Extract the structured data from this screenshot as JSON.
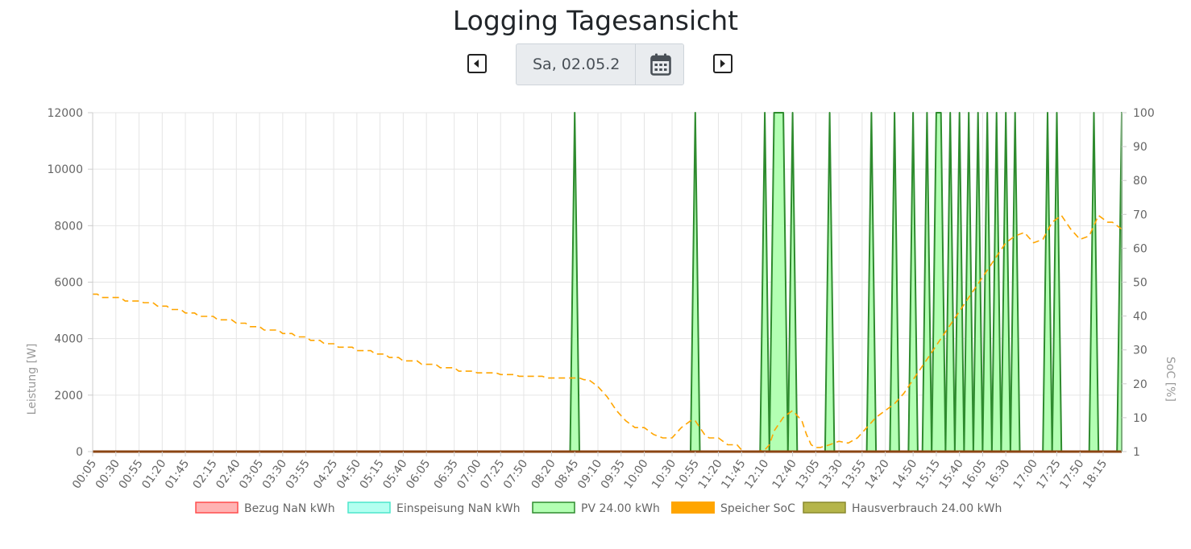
{
  "page": {
    "title": "Logging Tagesansicht"
  },
  "nav": {
    "date_value": "Sa, 02.05.2",
    "prev_icon": "caret-left-icon",
    "next_icon": "caret-right-icon",
    "calendar_icon": "calendar-icon"
  },
  "chart_data": {
    "type": "line",
    "y_left": {
      "label": "Leistung [W]",
      "min": 0,
      "max": 12000,
      "ticks": [
        0,
        2000,
        4000,
        6000,
        8000,
        10000,
        12000
      ]
    },
    "y_right": {
      "label": "SoC [%]",
      "min": 1,
      "max": 100,
      "tick_labels": [
        "1",
        "10",
        "20",
        "30",
        "40",
        "50",
        "60",
        "70",
        "80",
        "90",
        "100"
      ]
    },
    "x_tick_labels": [
      "00:05",
      "00:30",
      "00:55",
      "01:20",
      "01:45",
      "02:15",
      "02:40",
      "03:05",
      "03:30",
      "03:55",
      "04:25",
      "04:50",
      "05:15",
      "05:40",
      "06:05",
      "06:35",
      "07:00",
      "07:25",
      "07:50",
      "08:20",
      "08:45",
      "09:10",
      "09:35",
      "10:00",
      "10:30",
      "10:55",
      "11:20",
      "11:45",
      "12:10",
      "12:40",
      "13:05",
      "13:30",
      "13:55",
      "14:20",
      "14:50",
      "15:15",
      "15:40",
      "16:05",
      "16:30",
      "17:00",
      "17:25",
      "17:50",
      "18:15"
    ],
    "x_range": [
      "00:05",
      "18:35"
    ],
    "grid": true,
    "legend_position": "bottom",
    "legend": [
      {
        "label": "Bezug NaN kWh",
        "fill": "#ffb3b3",
        "stroke": "#ff4d4d"
      },
      {
        "label": "Einspeisung NaN kWh",
        "fill": "#b3fff0",
        "stroke": "#4de6cc"
      },
      {
        "label": "PV 24.00 kWh",
        "fill": "#b3ffb3",
        "stroke": "#2e8b2e"
      },
      {
        "label": "Speicher SoC",
        "fill": "#ffa500",
        "stroke": "#ffa500"
      },
      {
        "label": "Hausverbrauch 24.00 kWh",
        "fill": "#b5b54a",
        "stroke": "#8a8a2e"
      }
    ],
    "series": [
      {
        "name": "PV 24.00 kWh",
        "axis": "left",
        "style": "area",
        "color": "#2e8b2e",
        "fill": "#b3ffb3",
        "spikes": [
          {
            "start": "08:40",
            "peak": [
              "08:45"
            ],
            "end": "08:50"
          },
          {
            "start": "10:50",
            "peak": [
              "10:55"
            ],
            "end": "11:00"
          },
          {
            "start": "12:05",
            "peak": [
              "12:10"
            ],
            "end": "12:15"
          },
          {
            "start": "12:15",
            "peak": [
              "12:20",
              "12:30"
            ],
            "end": "12:35"
          },
          {
            "start": "12:35",
            "peak": [
              "12:40"
            ],
            "end": "12:45"
          },
          {
            "start": "13:15",
            "peak": [
              "13:20"
            ],
            "end": "13:25"
          },
          {
            "start": "14:00",
            "peak": [
              "14:05"
            ],
            "end": "14:10"
          },
          {
            "start": "14:25",
            "peak": [
              "14:30"
            ],
            "end": "14:35"
          },
          {
            "start": "14:45",
            "peak": [
              "14:50"
            ],
            "end": "14:55"
          },
          {
            "start": "15:00",
            "peak": [
              "15:05"
            ],
            "end": "15:10"
          },
          {
            "start": "15:10",
            "peak": [
              "15:15",
              "15:20"
            ],
            "end": "15:25"
          },
          {
            "start": "15:25",
            "peak": [
              "15:30"
            ],
            "end": "15:35"
          },
          {
            "start": "15:35",
            "peak": [
              "15:40"
            ],
            "end": "15:45"
          },
          {
            "start": "15:45",
            "peak": [
              "15:50"
            ],
            "end": "15:55"
          },
          {
            "start": "15:55",
            "peak": [
              "16:00"
            ],
            "end": "16:05"
          },
          {
            "start": "16:05",
            "peak": [
              "16:10"
            ],
            "end": "16:15"
          },
          {
            "start": "16:15",
            "peak": [
              "16:20"
            ],
            "end": "16:25"
          },
          {
            "start": "16:25",
            "peak": [
              "16:30"
            ],
            "end": "16:35"
          },
          {
            "start": "16:35",
            "peak": [
              "16:40"
            ],
            "end": "16:45"
          },
          {
            "start": "17:10",
            "peak": [
              "17:15"
            ],
            "end": "17:20"
          },
          {
            "start": "17:20",
            "peak": [
              "17:25"
            ],
            "end": "17:30"
          },
          {
            "start": "18:00",
            "peak": [
              "18:05"
            ],
            "end": "18:10"
          },
          {
            "start": "18:30",
            "peak": [
              "18:35"
            ],
            "end": "18:35"
          }
        ],
        "peak_value": 12000
      },
      {
        "name": "Hausverbrauch 24.00 kWh",
        "axis": "left",
        "style": "line",
        "color": "#8b4513",
        "x": [
          "00:05",
          "18:35"
        ],
        "values": [
          0,
          0
        ]
      },
      {
        "name": "Speicher SoC",
        "axis": "right",
        "style": "dashed-line",
        "color": "#ffa500",
        "x": [
          "00:05",
          "00:10",
          "00:15",
          "00:35",
          "00:40",
          "00:55",
          "01:00",
          "01:10",
          "01:15",
          "01:25",
          "01:30",
          "01:40",
          "01:45",
          "01:55",
          "02:00",
          "02:15",
          "02:20",
          "02:35",
          "02:40",
          "02:50",
          "02:55",
          "03:05",
          "03:10",
          "03:25",
          "03:30",
          "03:40",
          "03:45",
          "03:55",
          "04:00",
          "04:10",
          "04:15",
          "04:25",
          "04:30",
          "04:45",
          "04:50",
          "05:05",
          "05:10",
          "05:20",
          "05:25",
          "05:35",
          "05:40",
          "05:55",
          "06:00",
          "06:15",
          "06:20",
          "06:35",
          "06:40",
          "06:55",
          "07:00",
          "07:20",
          "07:25",
          "07:40",
          "07:45",
          "08:10",
          "08:15",
          "08:40",
          "08:50",
          "08:55",
          "09:00",
          "09:05",
          "09:10",
          "09:20",
          "09:30",
          "09:40",
          "09:50",
          "10:00",
          "10:10",
          "10:20",
          "10:30",
          "10:40",
          "10:50",
          "10:55",
          "11:00",
          "11:05",
          "11:10",
          "11:20",
          "11:30",
          "11:40",
          "11:45",
          "11:50",
          "12:00",
          "12:10",
          "12:15",
          "12:20",
          "12:25",
          "12:30",
          "12:35",
          "12:40",
          "12:50",
          "12:55",
          "13:00",
          "13:05",
          "13:10",
          "13:20",
          "13:30",
          "13:40",
          "13:50",
          "14:00",
          "14:10",
          "14:20",
          "14:30",
          "14:40",
          "14:50",
          "15:00",
          "15:10",
          "15:20",
          "15:30",
          "15:40",
          "15:50",
          "16:00",
          "16:10",
          "16:20",
          "16:30",
          "16:40",
          "16:50",
          "17:00",
          "17:10",
          "17:20",
          "17:30",
          "17:40",
          "17:50",
          "18:00",
          "18:10",
          "18:20",
          "18:25",
          "18:35"
        ],
        "values": [
          47,
          47,
          46,
          46,
          45,
          45,
          44.5,
          44.5,
          43.5,
          43.5,
          42.5,
          42.5,
          41.5,
          41.5,
          40.5,
          40.5,
          39.5,
          39.5,
          38.5,
          38.5,
          37.5,
          37.5,
          36.5,
          36.5,
          35.5,
          35.5,
          34.5,
          34.5,
          33.5,
          33.5,
          32.5,
          32.5,
          31.5,
          31.5,
          30.5,
          30.5,
          29.5,
          29.5,
          28.5,
          28.5,
          27.5,
          27.5,
          26.5,
          26.5,
          25.5,
          25.5,
          24.5,
          24.5,
          24,
          24,
          23.5,
          23.5,
          23,
          23,
          22.5,
          22.5,
          22.5,
          22,
          22,
          21,
          20,
          17,
          13,
          10,
          8,
          8,
          6,
          5,
          5,
          8,
          10,
          10,
          8,
          6,
          5,
          5,
          3,
          3,
          1.5,
          1,
          1,
          1.5,
          3,
          7,
          9,
          11,
          12,
          13,
          10,
          6,
          3,
          2.2,
          2.2,
          3,
          4,
          3.5,
          5,
          8,
          11,
          13,
          15,
          18,
          22,
          26,
          30,
          34,
          38,
          42,
          46,
          50,
          54,
          58,
          62,
          64,
          65,
          62,
          63,
          68,
          70,
          66,
          63,
          64,
          70,
          68,
          68,
          66
        ]
      },
      {
        "name": "Bezug NaN kWh",
        "axis": "left",
        "style": "line",
        "color": "#ff4d4d",
        "values": []
      },
      {
        "name": "Einspeisung NaN kWh",
        "axis": "left",
        "style": "line",
        "color": "#4de6cc",
        "values": []
      }
    ]
  }
}
